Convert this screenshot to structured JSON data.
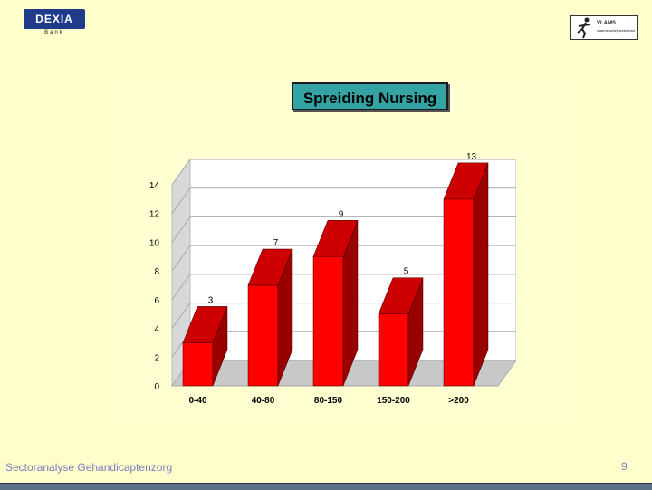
{
  "header": {
    "left_logo": {
      "name": "DEXIA",
      "sub": "Bank",
      "color": "#1f3b8a"
    },
    "right_logo": {
      "name": "VLAMS",
      "sub": "vlaams welzijnsverbond"
    }
  },
  "chart_data": {
    "type": "bar",
    "style": "3d",
    "title": "Spreiding Nursing",
    "categories": [
      "0-40",
      "40-80",
      "80-150",
      "150-200",
      ">200"
    ],
    "values": [
      3,
      7,
      9,
      5,
      13
    ],
    "ylim": [
      0,
      14
    ],
    "yticks": [
      0,
      2,
      4,
      6,
      8,
      10,
      12,
      14
    ],
    "bar_color": "#ff0000",
    "grid": true,
    "legend": "none"
  },
  "footer": {
    "text": "Sectoranalyse Gehandicaptenzorg",
    "page_number": "9"
  }
}
